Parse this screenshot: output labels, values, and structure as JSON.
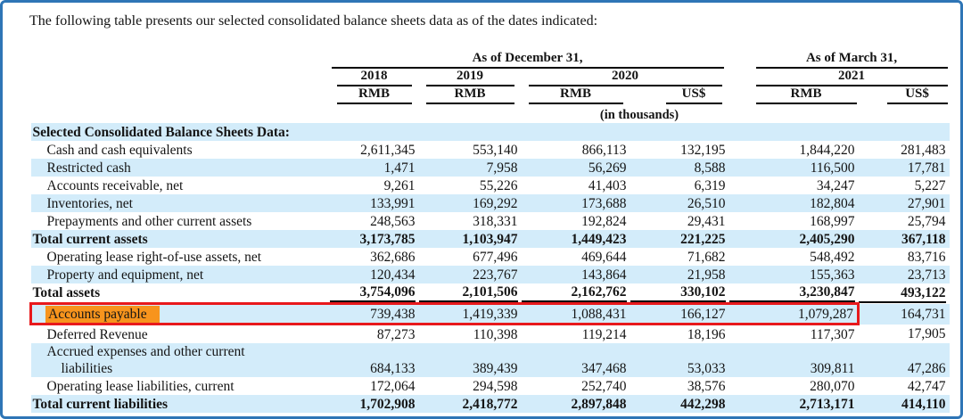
{
  "intro_text": "The following table presents our selected consolidated balance sheets data as of the dates indicated:",
  "colors": {
    "frame_border": "#2E75B6",
    "row_stripe": "#D3ECFA",
    "annotation_box": "#E8191C",
    "annotation_highlight": "#F7941D",
    "header_rule": "#000000"
  },
  "table": {
    "group_headers": [
      {
        "label": "As of December 31,",
        "colspan": 4
      },
      {
        "label": "As of March 31,",
        "colspan": 2
      }
    ],
    "year_headers": [
      {
        "label": "2018",
        "colspan": 1
      },
      {
        "label": "2019",
        "colspan": 1
      },
      {
        "label": "2020",
        "colspan": 2
      },
      {
        "label": "2021",
        "colspan": 2
      }
    ],
    "currency_headers": [
      "RMB",
      "RMB",
      "RMB",
      "US$",
      "RMB",
      "US$"
    ],
    "units_note": "(in thousands)",
    "rows": [
      {
        "label": "Selected Consolidated Balance Sheets Data:",
        "section": true,
        "flush": true,
        "stripe": true,
        "values": [
          "",
          "",
          "",
          "",
          "",
          ""
        ]
      },
      {
        "label": "Cash and cash equivalents",
        "stripe": false,
        "values": [
          "2,611,345",
          "553,140",
          "866,113",
          "132,195",
          "1,844,220",
          "281,483"
        ]
      },
      {
        "label": "Restricted cash",
        "stripe": true,
        "values": [
          "1,471",
          "7,958",
          "56,269",
          "8,588",
          "116,500",
          "17,781"
        ]
      },
      {
        "label": "Accounts receivable, net",
        "stripe": false,
        "values": [
          "9,261",
          "55,226",
          "41,403",
          "6,319",
          "34,247",
          "5,227"
        ]
      },
      {
        "label": "Inventories, net",
        "stripe": true,
        "values": [
          "133,991",
          "169,292",
          "173,688",
          "26,510",
          "182,804",
          "27,901"
        ]
      },
      {
        "label": "Prepayments and other current assets",
        "stripe": false,
        "values": [
          "248,563",
          "318,331",
          "192,824",
          "29,431",
          "168,997",
          "25,794"
        ]
      },
      {
        "label": "Total current assets",
        "bold": true,
        "flush": true,
        "stripe": true,
        "values": [
          "3,173,785",
          "1,103,947",
          "1,449,423",
          "221,225",
          "2,405,290",
          "367,118"
        ]
      },
      {
        "label": "Operating lease right-of-use assets, net",
        "stripe": false,
        "values": [
          "362,686",
          "677,496",
          "469,644",
          "71,682",
          "548,492",
          "83,716"
        ]
      },
      {
        "label": "Property and equipment, net",
        "stripe": true,
        "values": [
          "120,434",
          "223,767",
          "143,864",
          "21,958",
          "155,363",
          "23,713"
        ]
      },
      {
        "label": "Total assets",
        "bold": true,
        "flush": true,
        "underline": true,
        "stripe": false,
        "values": [
          "3,754,096",
          "2,101,506",
          "2,162,762",
          "330,102",
          "3,230,847",
          "493,122"
        ]
      },
      {
        "label": "Accounts payable",
        "highlight": true,
        "stripe": true,
        "values": [
          "739,438",
          "1,419,339",
          "1,088,431",
          "166,127",
          "1,079,287",
          "164,731"
        ]
      },
      {
        "label": "Deferred Revenue",
        "stripe": false,
        "values": [
          "87,273",
          "110,398",
          "119,214",
          "18,196",
          "117,307",
          "17,905"
        ]
      },
      {
        "label": "Accrued expenses and other current",
        "label2": "liabilities",
        "stripe": true,
        "values": [
          "684,133",
          "389,439",
          "347,468",
          "53,033",
          "309,811",
          "47,286"
        ]
      },
      {
        "label": "Operating lease liabilities, current",
        "stripe": false,
        "values": [
          "172,064",
          "294,598",
          "252,740",
          "38,576",
          "280,070",
          "42,747"
        ]
      },
      {
        "label": "Total current liabilities",
        "bold": true,
        "flush": true,
        "stripe": true,
        "values": [
          "1,702,908",
          "2,418,772",
          "2,897,848",
          "442,298",
          "2,713,171",
          "414,110"
        ]
      }
    ]
  },
  "annotation": {
    "highlighted_row": "Accounts payable",
    "note": "red box spans label through 2021 RMB column; orange fill on row label"
  }
}
